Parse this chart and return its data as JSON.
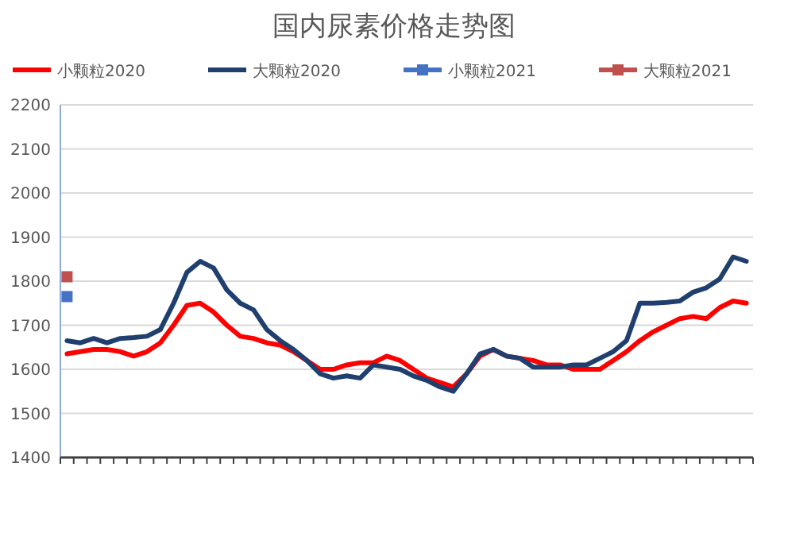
{
  "chart_data": {
    "type": "line",
    "title": "国内尿素价格走势图",
    "categories": [
      null,
      null,
      null,
      null,
      null,
      null,
      null,
      null,
      null,
      null,
      null,
      null,
      null,
      null,
      null,
      null,
      null,
      null,
      null,
      null,
      null,
      null,
      null,
      null,
      null,
      null,
      null,
      null,
      null,
      null,
      null,
      null,
      null,
      null,
      null,
      null,
      null,
      null,
      null,
      null,
      null,
      null,
      null,
      null,
      null,
      null,
      null,
      null,
      null,
      null,
      null,
      null
    ],
    "series": [
      {
        "name": "小颗粒2020",
        "color": "#ff0000",
        "marker": "none",
        "values": [
          1635,
          1640,
          1645,
          1645,
          1640,
          1630,
          1640,
          1660,
          1700,
          1745,
          1750,
          1730,
          1700,
          1675,
          1670,
          1660,
          1655,
          1640,
          1620,
          1600,
          1600,
          1610,
          1615,
          1615,
          1630,
          1620,
          1600,
          1580,
          1570,
          1560,
          1590,
          1630,
          1645,
          1630,
          1625,
          1620,
          1610,
          1610,
          1600,
          1600,
          1600,
          1620,
          1640,
          1665,
          1685,
          1700,
          1715,
          1720,
          1715,
          1740,
          1755,
          1750
        ]
      },
      {
        "name": "大颗粒2020",
        "color": "#1f3f6e",
        "marker": "none",
        "values": [
          1665,
          1660,
          1670,
          1660,
          1670,
          1672,
          1675,
          1690,
          1750,
          1820,
          1845,
          1830,
          1780,
          1750,
          1735,
          1690,
          1665,
          1645,
          1620,
          1590,
          1580,
          1585,
          1580,
          1610,
          1605,
          1600,
          1585,
          1575,
          1560,
          1550,
          1590,
          1635,
          1645,
          1630,
          1625,
          1605,
          1605,
          1605,
          1610,
          1610,
          1625,
          1640,
          1665,
          1750,
          1750,
          1752,
          1755,
          1775,
          1785,
          1805,
          1855,
          1845
        ]
      },
      {
        "name": "小颗粒2021",
        "color": "#4472c4",
        "marker": "square",
        "values": [
          1765,
          null,
          null,
          null,
          null,
          null,
          null,
          null,
          null,
          null,
          null,
          null,
          null,
          null,
          null,
          null,
          null,
          null,
          null,
          null,
          null,
          null,
          null,
          null,
          null,
          null,
          null,
          null,
          null,
          null,
          null,
          null,
          null,
          null,
          null,
          null,
          null,
          null,
          null,
          null,
          null,
          null,
          null,
          null,
          null,
          null,
          null,
          null,
          null,
          null,
          null,
          null
        ]
      },
      {
        "name": "大颗粒2021",
        "color": "#c0504d",
        "marker": "square",
        "values": [
          1810,
          null,
          null,
          null,
          null,
          null,
          null,
          null,
          null,
          null,
          null,
          null,
          null,
          null,
          null,
          null,
          null,
          null,
          null,
          null,
          null,
          null,
          null,
          null,
          null,
          null,
          null,
          null,
          null,
          null,
          null,
          null,
          null,
          null,
          null,
          null,
          null,
          null,
          null,
          null,
          null,
          null,
          null,
          null,
          null,
          null,
          null,
          null,
          null,
          null,
          null,
          null
        ]
      }
    ],
    "ylim": [
      1400,
      2200
    ],
    "yticks": [
      1400,
      1500,
      1600,
      1700,
      1800,
      1900,
      2000,
      2100,
      2200
    ],
    "grid": "y",
    "legend": "top"
  }
}
